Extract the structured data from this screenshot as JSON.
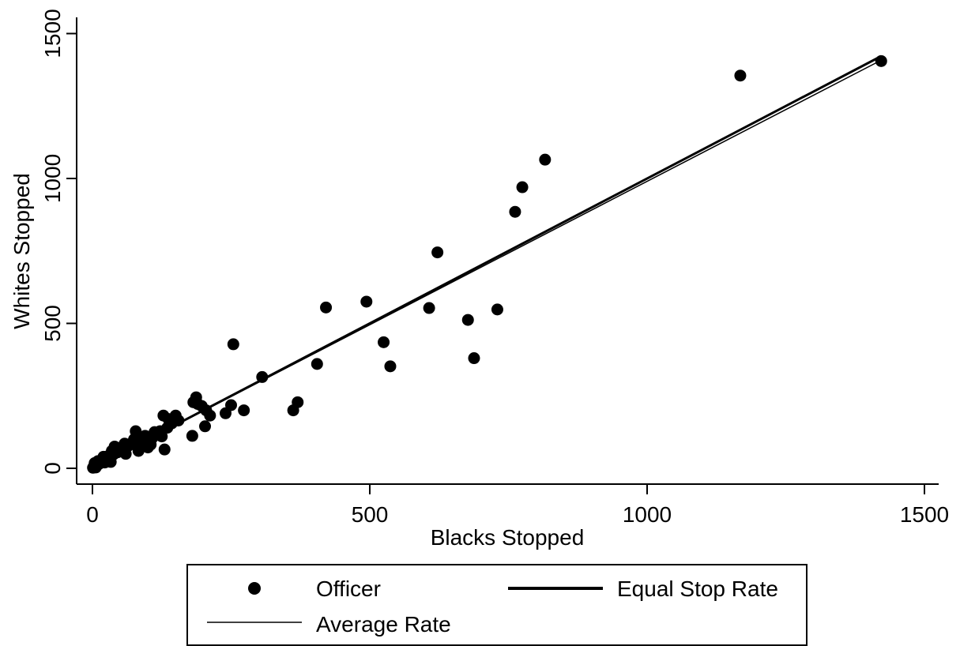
{
  "chart_data": {
    "type": "scatter",
    "xlabel": "Blacks Stopped",
    "ylabel": "Whites Stopped",
    "xlim": [
      -10,
      1520
    ],
    "ylim": [
      -40,
      1560
    ],
    "xticks": [
      0,
      500,
      1000,
      1500
    ],
    "yticks": [
      0,
      500,
      1000,
      1500
    ],
    "grid": false,
    "legend_placement": "bottom",
    "legend": {
      "officer": "Officer",
      "equal": "Equal Stop Rate",
      "average": "Average Rate"
    },
    "colors": {
      "marker": "#000000",
      "line": "#000000"
    },
    "series": [
      {
        "name": "Officer",
        "kind": "points",
        "points": [
          [
            1422,
            1405
          ],
          [
            1168,
            1355
          ],
          [
            816,
            1065
          ],
          [
            775,
            970
          ],
          [
            762,
            885
          ],
          [
            622,
            745
          ],
          [
            607,
            553
          ],
          [
            730,
            548
          ],
          [
            677,
            512
          ],
          [
            688,
            380
          ],
          [
            494,
            575
          ],
          [
            421,
            555
          ],
          [
            525,
            435
          ],
          [
            537,
            352
          ],
          [
            405,
            360
          ],
          [
            370,
            228
          ],
          [
            362,
            200
          ],
          [
            254,
            428
          ],
          [
            306,
            315
          ],
          [
            273,
            200
          ],
          [
            250,
            218
          ],
          [
            240,
            190
          ],
          [
            212,
            182
          ],
          [
            205,
            200
          ],
          [
            197,
            215
          ],
          [
            190,
            222
          ],
          [
            187,
            245
          ],
          [
            182,
            228
          ],
          [
            203,
            145
          ],
          [
            180,
            112
          ],
          [
            155,
            165
          ],
          [
            150,
            182
          ],
          [
            143,
            155
          ],
          [
            137,
            170
          ],
          [
            128,
            182
          ],
          [
            135,
            140
          ],
          [
            122,
            128
          ],
          [
            125,
            110
          ],
          [
            112,
            125
          ],
          [
            108,
            105
          ],
          [
            105,
            82
          ],
          [
            100,
            72
          ],
          [
            95,
            112
          ],
          [
            88,
            95
          ],
          [
            85,
            70
          ],
          [
            78,
            128
          ],
          [
            83,
            60
          ],
          [
            75,
            100
          ],
          [
            70,
            85
          ],
          [
            65,
            78
          ],
          [
            58,
            85
          ],
          [
            55,
            62
          ],
          [
            60,
            50
          ],
          [
            50,
            70
          ],
          [
            45,
            55
          ],
          [
            40,
            75
          ],
          [
            38,
            48
          ],
          [
            35,
            60
          ],
          [
            30,
            35
          ],
          [
            28,
            42
          ],
          [
            25,
            28
          ],
          [
            20,
            40
          ],
          [
            22,
            20
          ],
          [
            18,
            30
          ],
          [
            15,
            22
          ],
          [
            12,
            15
          ],
          [
            10,
            25
          ],
          [
            8,
            12
          ],
          [
            5,
            8
          ],
          [
            4,
            18
          ],
          [
            2,
            5
          ],
          [
            1,
            2
          ],
          [
            6,
            3
          ],
          [
            130,
            65
          ],
          [
            33,
            22
          ]
        ]
      },
      {
        "name": "Equal Stop Rate",
        "kind": "line",
        "from": [
          0,
          0
        ],
        "to": [
          1422,
          1422
        ]
      },
      {
        "name": "Average Rate",
        "kind": "line",
        "from": [
          0,
          0
        ],
        "to": [
          1422,
          1408
        ]
      }
    ]
  }
}
